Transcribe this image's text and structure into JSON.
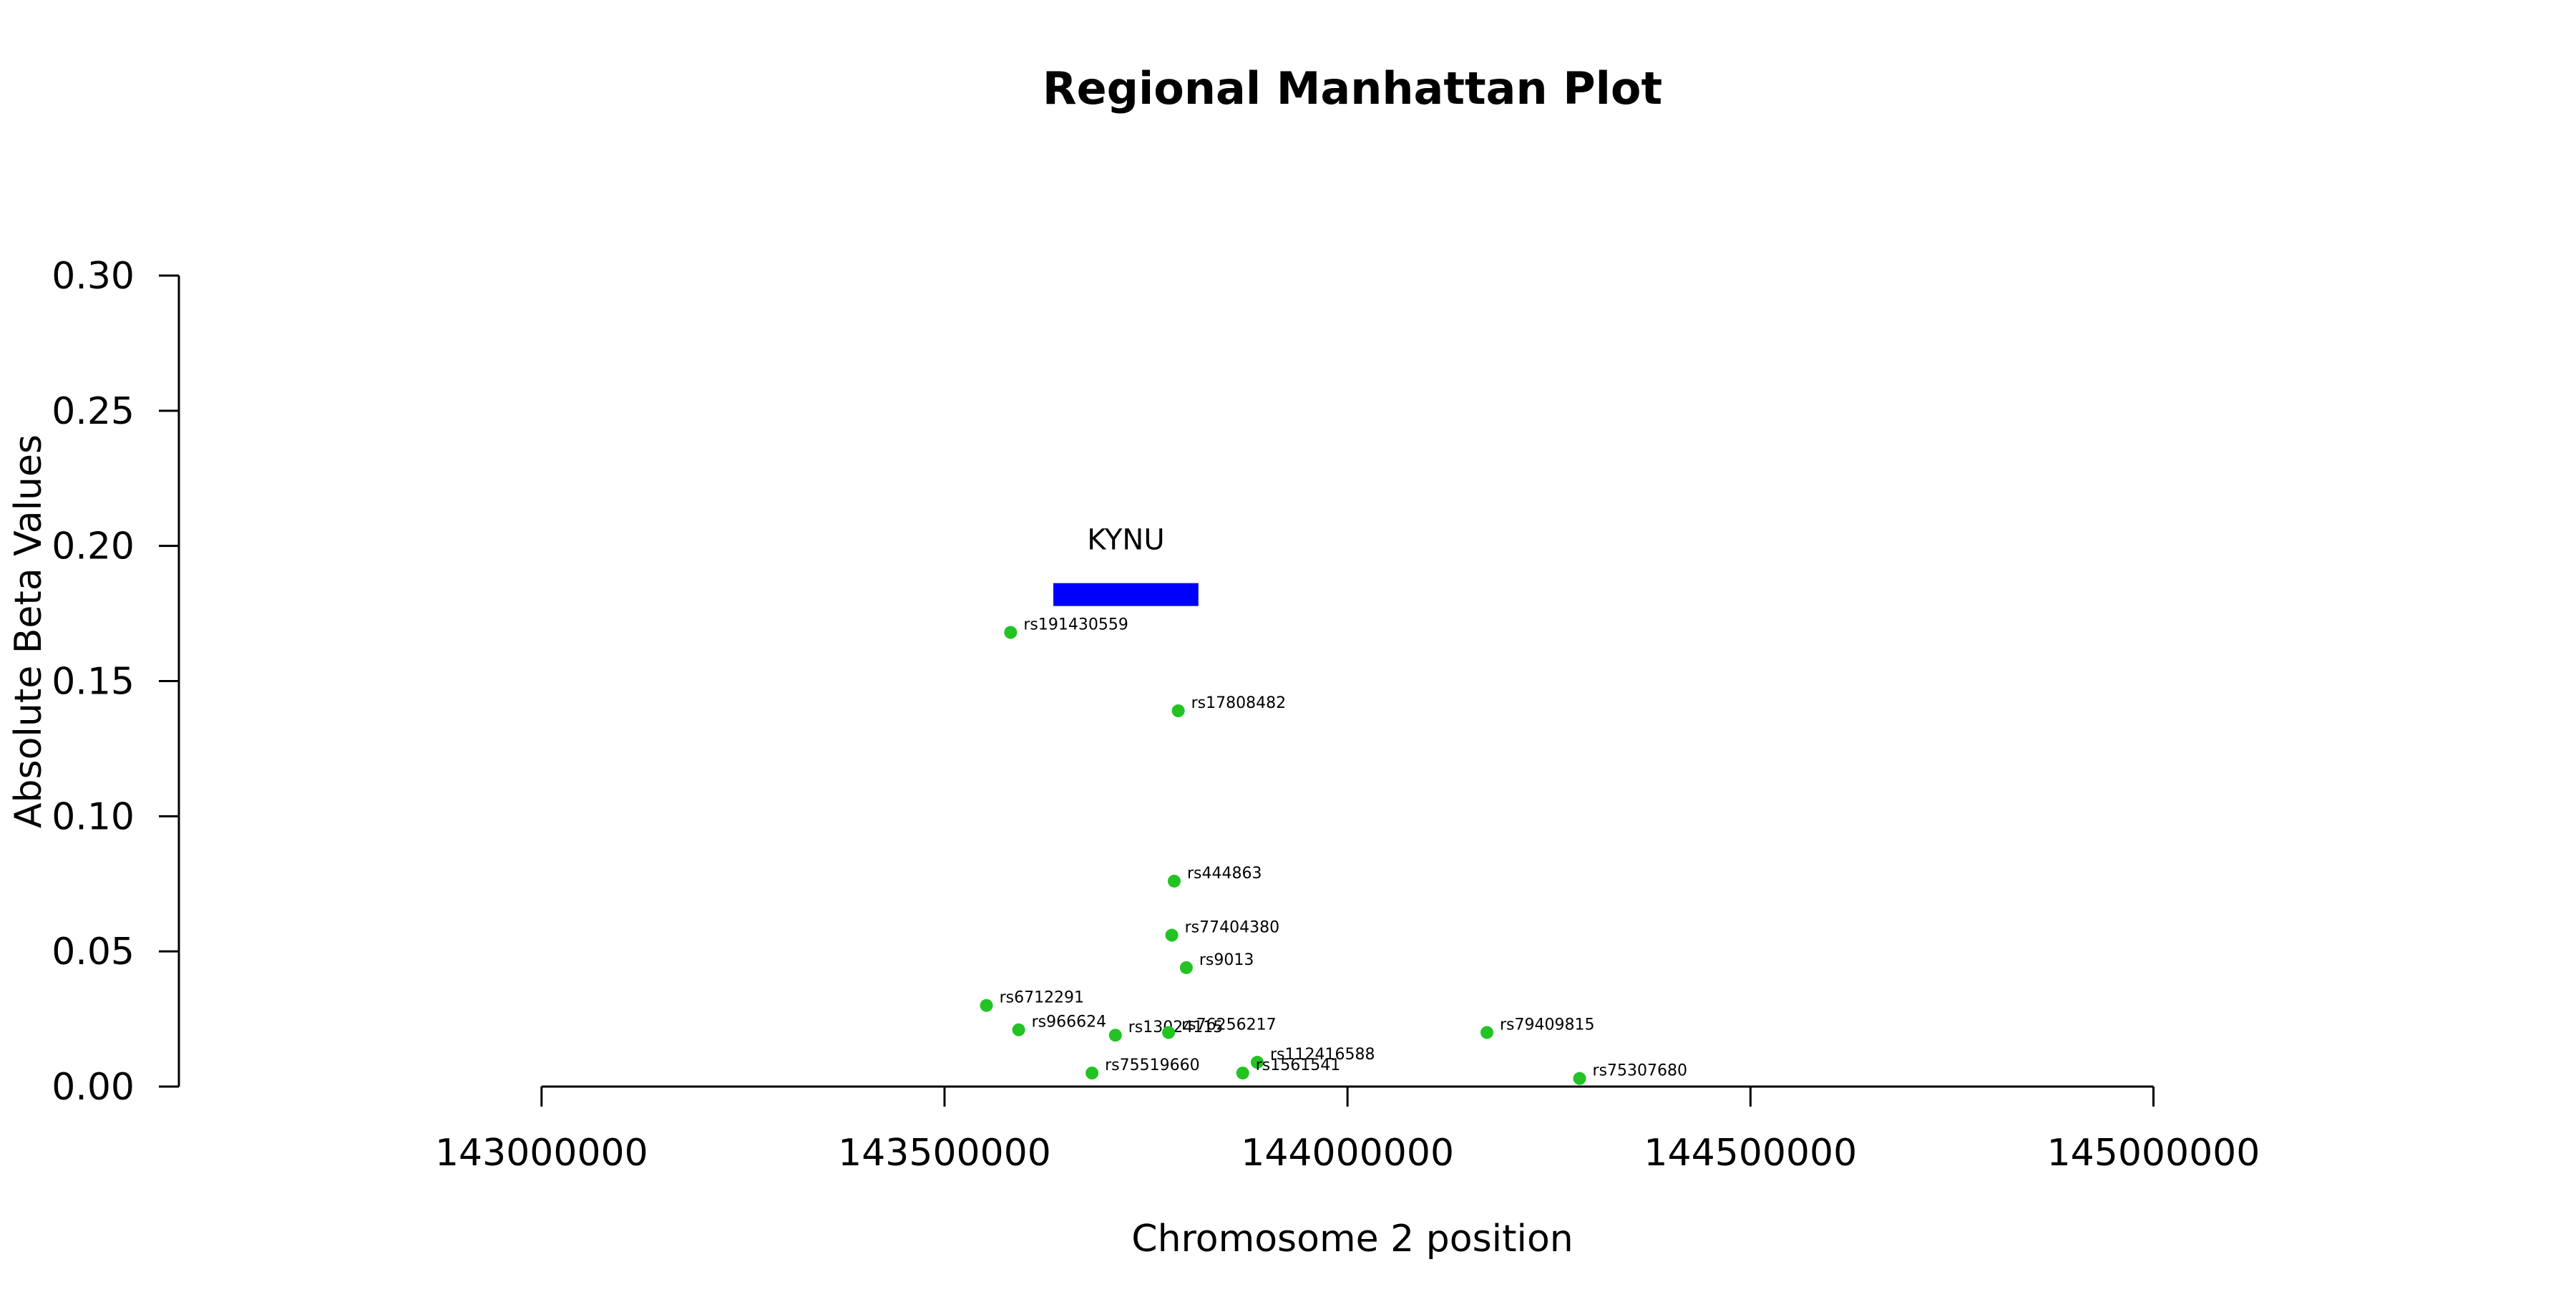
{
  "chart_data": {
    "type": "scatter",
    "title": "Regional Manhattan Plot",
    "xlabel": "Chromosome 2 position",
    "ylabel": "Absolute Beta Values",
    "xlim": [
      142550000,
      145400000
    ],
    "ylim": [
      0,
      0.3
    ],
    "x_ticks": [
      143000000,
      143500000,
      144000000,
      144500000,
      145000000
    ],
    "x_tick_labels": [
      "143000000",
      "143500000",
      "144000000",
      "144500000",
      "145000000"
    ],
    "y_ticks": [
      0.0,
      0.05,
      0.1,
      0.15,
      0.2,
      0.25,
      0.3
    ],
    "y_tick_labels": [
      "0.00",
      "0.05",
      "0.10",
      "0.15",
      "0.20",
      "0.25",
      "0.30"
    ],
    "grid": false,
    "point_color": "#22c322",
    "gene_color": "#0000ff",
    "genes": [
      {
        "name": "KYNU",
        "start": 143635000,
        "end": 143815000,
        "y": 0.182
      }
    ],
    "points": [
      {
        "label": "rs191430559",
        "x": 143582000,
        "y": 0.168
      },
      {
        "label": "rs17808482",
        "x": 143790000,
        "y": 0.139
      },
      {
        "label": "rs444863",
        "x": 143785000,
        "y": 0.076
      },
      {
        "label": "rs77404380",
        "x": 143782000,
        "y": 0.056
      },
      {
        "label": "rs9013",
        "x": 143800000,
        "y": 0.044
      },
      {
        "label": "rs6712291",
        "x": 143552000,
        "y": 0.03
      },
      {
        "label": "rs966624",
        "x": 143592000,
        "y": 0.021
      },
      {
        "label": "rs13024115",
        "x": 143712000,
        "y": 0.019
      },
      {
        "label": "rs76256217",
        "x": 143778000,
        "y": 0.02
      },
      {
        "label": "rs79409815",
        "x": 144173000,
        "y": 0.02
      },
      {
        "label": "rs112416588",
        "x": 143888000,
        "y": 0.009
      },
      {
        "label": "rs1561541",
        "x": 143870000,
        "y": 0.005
      },
      {
        "label": "rs75519660",
        "x": 143683000,
        "y": 0.005
      },
      {
        "label": "rs75307680",
        "x": 144288000,
        "y": 0.003
      }
    ]
  }
}
